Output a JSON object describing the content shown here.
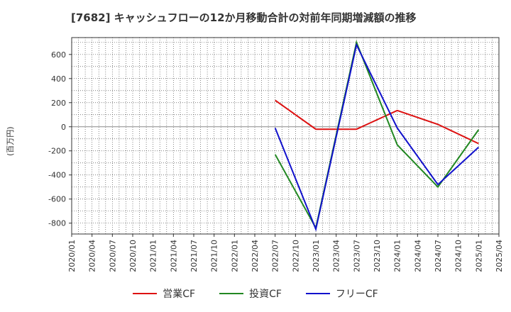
{
  "chart_data": {
    "type": "line",
    "title": "[7682]  キャッシュフローの12か月移動合計の対前年同期増減額の推移",
    "ylabel": "(百万円)",
    "xlabel": "",
    "x_tick_labels": [
      "2020/01",
      "2020/04",
      "2020/07",
      "2020/10",
      "2021/01",
      "2021/04",
      "2021/07",
      "2021/10",
      "2022/01",
      "2022/04",
      "2022/07",
      "2022/10",
      "2023/01",
      "2023/04",
      "2023/07",
      "2023/10",
      "2024/01",
      "2024/04",
      "2024/07",
      "2024/10",
      "2025/01",
      "2025/04"
    ],
    "y_ticks": [
      600,
      400,
      200,
      0,
      -200,
      -400,
      -600,
      -800
    ],
    "ylim": [
      -890,
      740
    ],
    "series": [
      {
        "name": "営業CF",
        "color": "#dd1111",
        "points": [
          [
            "2022/07",
            220
          ],
          [
            "2023/01",
            -20
          ],
          [
            "2023/07",
            -20
          ],
          [
            "2024/01",
            135
          ],
          [
            "2024/07",
            20
          ],
          [
            "2025/01",
            -140
          ]
        ]
      },
      {
        "name": "投資CF",
        "color": "#228822",
        "points": [
          [
            "2022/07",
            -230
          ],
          [
            "2023/01",
            -840
          ],
          [
            "2023/07",
            700
          ],
          [
            "2024/01",
            -150
          ],
          [
            "2024/07",
            -500
          ],
          [
            "2025/01",
            -25
          ]
        ]
      },
      {
        "name": "フリーCF",
        "color": "#1111cc",
        "points": [
          [
            "2022/07",
            -10
          ],
          [
            "2023/01",
            -850
          ],
          [
            "2023/07",
            680
          ],
          [
            "2024/01",
            -10
          ],
          [
            "2024/07",
            -480
          ],
          [
            "2025/01",
            -170
          ]
        ]
      }
    ]
  },
  "legend": {
    "item_0": "営業CF",
    "item_1": "投資CF",
    "item_2": "フリーCF"
  }
}
